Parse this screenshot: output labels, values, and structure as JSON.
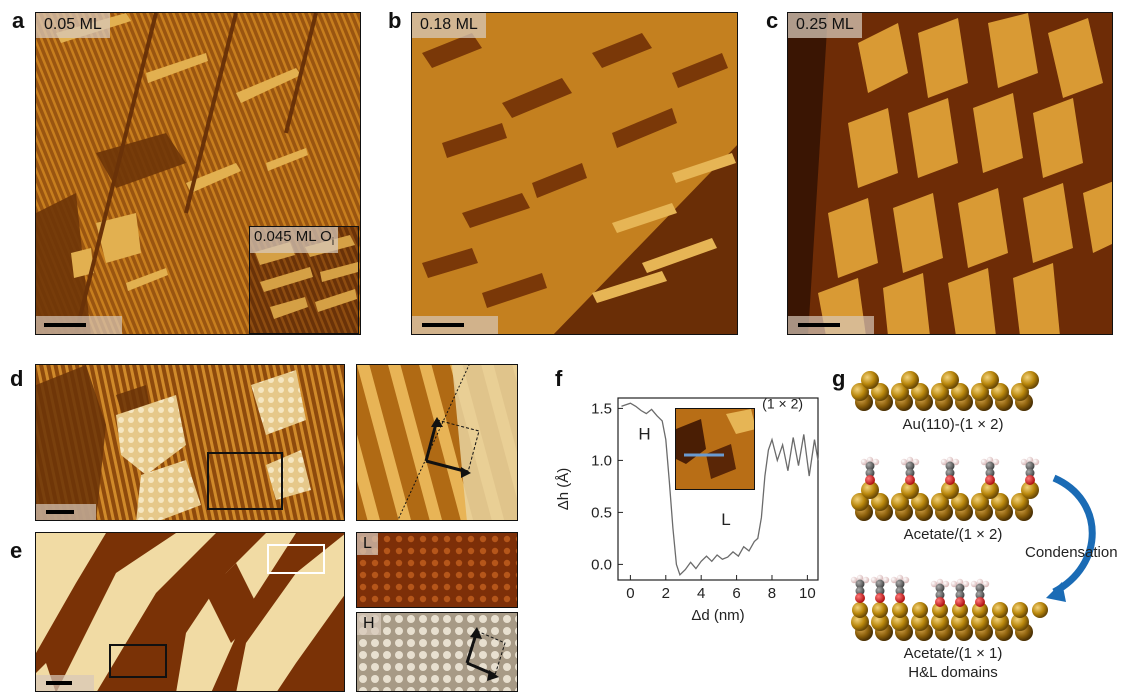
{
  "panels": {
    "a": {
      "letter": "a",
      "coverage": "0.05 ML",
      "inset_label": "0.045 ML O"
    },
    "b": {
      "letter": "b",
      "coverage": "0.18 ML"
    },
    "c": {
      "letter": "c",
      "coverage": "0.25 ML"
    },
    "d": {
      "letter": "d"
    },
    "e": {
      "letter": "e",
      "zoom_low": "L",
      "zoom_high": "H"
    },
    "f": {
      "letter": "f"
    },
    "g": {
      "letter": "g"
    }
  },
  "inset_subscript": "i",
  "chart_data": {
    "type": "line",
    "xlabel": "Δd (nm)",
    "ylabel": "Δh (Å)",
    "xlim": [
      -0.7,
      10.6
    ],
    "ylim": [
      -0.15,
      1.6
    ],
    "xticks": [
      "0",
      "2",
      "4",
      "6",
      "8",
      "10"
    ],
    "yticks": [
      "0.0",
      "0.5",
      "1.0",
      "1.5"
    ],
    "annotations": [
      "H",
      "L",
      "(1 × 2)"
    ],
    "series": [
      {
        "color": "#6b6b6b",
        "x": [
          -0.5,
          0.0,
          0.3,
          0.6,
          0.9,
          1.2,
          1.5,
          1.8,
          2.0,
          2.2,
          2.4,
          2.6,
          2.8,
          3.1,
          3.4,
          3.7,
          4.0,
          4.3,
          4.6,
          4.9,
          5.2,
          5.5,
          5.8,
          6.1,
          6.4,
          6.7,
          7.0,
          7.2,
          7.4,
          7.6,
          7.8,
          8.0,
          8.3,
          8.6,
          8.9,
          9.2,
          9.5,
          9.8,
          10.1,
          10.4,
          10.6
        ],
        "y": [
          1.52,
          1.55,
          1.52,
          1.48,
          1.45,
          1.49,
          1.43,
          1.38,
          1.2,
          0.8,
          0.35,
          0.0,
          -0.1,
          -0.05,
          0.02,
          -0.04,
          0.03,
          0.08,
          0.03,
          0.09,
          0.05,
          0.07,
          0.12,
          0.08,
          0.17,
          0.13,
          0.22,
          0.25,
          0.45,
          0.85,
          1.1,
          1.2,
          1.0,
          1.15,
          0.9,
          1.22,
          0.95,
          1.25,
          0.85,
          1.2,
          1.0
        ]
      }
    ]
  },
  "structures": {
    "g1": "Au(110)-(1 × 2)",
    "g2": "Acetate/(1 × 2)",
    "g3_line1": "Acetate/(1 × 1)",
    "g3_line2": "H&L domains",
    "condensation": "Condensation"
  }
}
